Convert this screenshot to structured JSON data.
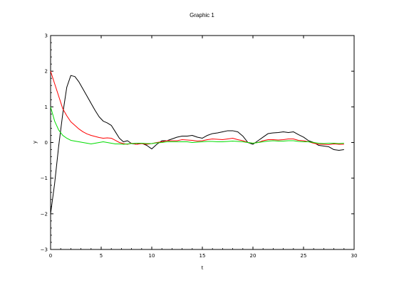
{
  "window": {
    "title": "Graphic 1"
  },
  "chart_data": {
    "type": "line",
    "title": "",
    "xlabel": "t",
    "ylabel": "y",
    "xlim": [
      0,
      30
    ],
    "ylim": [
      -3,
      3
    ],
    "xticks": [
      0,
      5,
      10,
      15,
      20,
      25,
      30
    ],
    "yticks": [
      -3,
      -2,
      -1,
      0,
      1,
      2,
      3
    ],
    "grid": false,
    "legend": "none",
    "series": [
      {
        "color": "#000000",
        "x": [
          0,
          0.4,
          0.8,
          1.2,
          1.6,
          2.0,
          2.4,
          2.8,
          3.2,
          3.6,
          4.0,
          4.4,
          4.8,
          5.2,
          5.6,
          6.0,
          6.4,
          6.8,
          7.2,
          7.6,
          8.0,
          8.5,
          9.0,
          9.5,
          10.0,
          10.5,
          11.0,
          11.5,
          12.0,
          12.5,
          13.0,
          13.5,
          14.0,
          14.5,
          15.0,
          15.5,
          16.0,
          16.5,
          17.0,
          17.5,
          18.0,
          18.5,
          19.0,
          19.5,
          20.0,
          20.5,
          21.0,
          21.5,
          22.0,
          22.5,
          23.0,
          23.5,
          24.0,
          24.5,
          25.0,
          25.5,
          26.0,
          26.5,
          27.0,
          27.5,
          28.0,
          28.5,
          29.0
        ],
        "y": [
          -2.0,
          -1.15,
          -0.1,
          0.8,
          1.55,
          1.88,
          1.85,
          1.7,
          1.5,
          1.3,
          1.1,
          0.9,
          0.72,
          0.6,
          0.55,
          0.48,
          0.3,
          0.12,
          0.02,
          0.05,
          -0.03,
          -0.05,
          -0.02,
          -0.08,
          -0.18,
          -0.05,
          0.05,
          0.05,
          0.1,
          0.15,
          0.18,
          0.18,
          0.2,
          0.15,
          0.12,
          0.2,
          0.25,
          0.27,
          0.3,
          0.33,
          0.33,
          0.3,
          0.18,
          0.0,
          -0.05,
          0.05,
          0.15,
          0.25,
          0.27,
          0.28,
          0.3,
          0.28,
          0.3,
          0.22,
          0.15,
          0.05,
          0.0,
          -0.08,
          -0.1,
          -0.12,
          -0.2,
          -0.22,
          -0.2
        ]
      },
      {
        "color": "#ff0000",
        "x": [
          0,
          0.4,
          0.8,
          1.2,
          1.6,
          2.0,
          2.4,
          2.8,
          3.2,
          3.6,
          4.0,
          4.4,
          4.8,
          5.2,
          5.6,
          6.0,
          6.4,
          6.8,
          7.2,
          7.6,
          8.0,
          8.5,
          9.0,
          9.5,
          10.0,
          10.5,
          11.0,
          11.5,
          12.0,
          12.5,
          13.0,
          13.5,
          14.0,
          14.5,
          15.0,
          15.5,
          16.0,
          16.5,
          17.0,
          17.5,
          18.0,
          18.5,
          19.0,
          19.5,
          20.0,
          20.5,
          21.0,
          21.5,
          22.0,
          22.5,
          23.0,
          23.5,
          24.0,
          24.5,
          25.0,
          25.5,
          26.0,
          26.5,
          27.0,
          27.5,
          28.0,
          28.5,
          29.0
        ],
        "y": [
          2.0,
          1.65,
          1.3,
          0.95,
          0.75,
          0.58,
          0.48,
          0.38,
          0.3,
          0.24,
          0.2,
          0.17,
          0.14,
          0.12,
          0.13,
          0.12,
          0.06,
          0.0,
          -0.03,
          -0.05,
          -0.02,
          -0.05,
          -0.03,
          -0.05,
          -0.03,
          0.0,
          0.02,
          0.05,
          0.05,
          0.05,
          0.08,
          0.07,
          0.06,
          0.04,
          0.05,
          0.08,
          0.1,
          0.09,
          0.08,
          0.1,
          0.12,
          0.08,
          0.05,
          0.0,
          -0.02,
          0.0,
          0.05,
          0.08,
          0.08,
          0.07,
          0.08,
          0.1,
          0.1,
          0.06,
          0.05,
          0.02,
          -0.02,
          -0.05,
          -0.05,
          -0.06,
          -0.04,
          -0.05,
          -0.05
        ]
      },
      {
        "color": "#00dd00",
        "x": [
          0,
          0.4,
          0.8,
          1.2,
          1.6,
          2.0,
          2.4,
          2.8,
          3.2,
          3.6,
          4.0,
          4.4,
          4.8,
          5.2,
          5.6,
          6.0,
          6.4,
          6.8,
          7.2,
          7.6,
          8.0,
          8.5,
          9.0,
          9.5,
          10.0,
          10.5,
          11.0,
          11.5,
          12.0,
          12.5,
          13.0,
          13.5,
          14.0,
          14.5,
          15.0,
          15.5,
          16.0,
          16.5,
          17.0,
          17.5,
          18.0,
          18.5,
          19.0,
          19.5,
          20.0,
          20.5,
          21.0,
          21.5,
          22.0,
          22.5,
          23.0,
          23.5,
          24.0,
          24.5,
          25.0,
          25.5,
          26.0,
          26.5,
          27.0,
          27.5,
          28.0,
          28.5,
          29.0
        ],
        "y": [
          1.0,
          0.6,
          0.35,
          0.2,
          0.12,
          0.06,
          0.04,
          0.02,
          0.0,
          -0.02,
          -0.04,
          -0.02,
          0.0,
          0.02,
          0.0,
          -0.02,
          -0.04,
          -0.04,
          -0.05,
          -0.04,
          -0.03,
          -0.02,
          -0.02,
          -0.03,
          -0.03,
          -0.01,
          0.0,
          0.02,
          0.02,
          0.02,
          0.02,
          0.02,
          0.0,
          0.01,
          0.02,
          0.03,
          0.03,
          0.02,
          0.02,
          0.03,
          0.04,
          0.03,
          0.02,
          0.0,
          -0.02,
          0.0,
          0.02,
          0.04,
          0.05,
          0.04,
          0.04,
          0.05,
          0.05,
          0.03,
          0.02,
          0.02,
          0.0,
          -0.02,
          -0.03,
          -0.02,
          -0.02,
          -0.03,
          -0.02
        ]
      }
    ]
  }
}
